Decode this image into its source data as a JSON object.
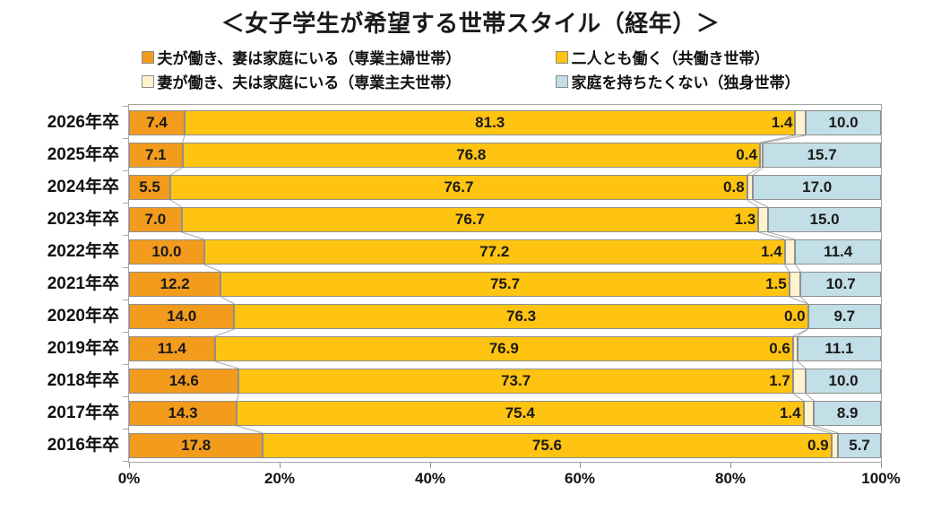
{
  "chart_data": {
    "type": "bar",
    "orientation": "horizontal",
    "stacked": true,
    "title": "＜女子学生が希望する世帯スタイル（経年）＞",
    "categories": [
      "2026年卒",
      "2025年卒",
      "2024年卒",
      "2023年卒",
      "2022年卒",
      "2021年卒",
      "2020年卒",
      "2019年卒",
      "2018年卒",
      "2017年卒",
      "2016年卒"
    ],
    "series": [
      {
        "name": "夫が働き、妻は家庭にいる（専業主婦世帯）",
        "color": "#F29B1D",
        "values": [
          7.4,
          7.1,
          5.5,
          7.0,
          10.0,
          12.2,
          14.0,
          11.4,
          14.6,
          14.3,
          17.8
        ]
      },
      {
        "name": "二人とも働く（共働き世帯）",
        "color": "#FFC411",
        "values": [
          81.3,
          76.8,
          76.7,
          76.7,
          77.2,
          75.7,
          76.3,
          76.9,
          73.7,
          75.4,
          75.6
        ]
      },
      {
        "name": "妻が働き、夫は家庭にいる（専業主夫世帯）",
        "color": "#FFF3CE",
        "values": [
          1.4,
          0.4,
          0.8,
          1.3,
          1.4,
          1.5,
          0.0,
          0.6,
          1.7,
          1.4,
          0.9
        ]
      },
      {
        "name": "家庭を持ちたくない（独身世帯）",
        "color": "#C2DEE7",
        "values": [
          10.0,
          15.7,
          17.0,
          15.0,
          11.4,
          10.7,
          9.7,
          11.1,
          10.0,
          8.9,
          5.7
        ]
      }
    ],
    "x_ticks": [
      {
        "value": 0,
        "label": "0%"
      },
      {
        "value": 20,
        "label": "20%"
      },
      {
        "value": 40,
        "label": "40%"
      },
      {
        "value": 60,
        "label": "60%"
      },
      {
        "value": 80,
        "label": "80%"
      },
      {
        "value": 100,
        "label": "100%"
      }
    ],
    "xlim": [
      0,
      100
    ],
    "value_format": "one_decimal",
    "legend_position": "top",
    "legend_columns": 2,
    "grid": false
  },
  "colors": {
    "bar_border": "#8f8f8f",
    "plot_border": "#a6a6a6",
    "connector": "#a9a9a9",
    "axis_tick": "#8c8c8c",
    "value_text": "#1a1a1a"
  }
}
